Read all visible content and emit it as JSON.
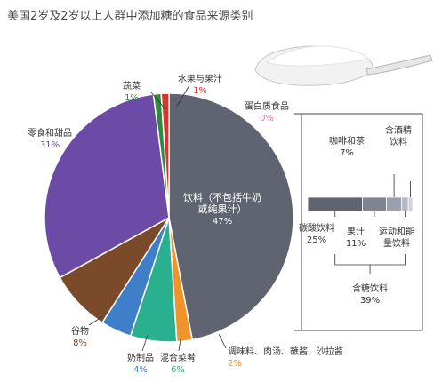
{
  "chart_data": {
    "type": "pie",
    "title": "美国2岁及2岁以上人群中添加糖的食品来源类别",
    "slices": [
      {
        "name": "饮料（不包括牛奶或纯果汁）",
        "label_lines": [
          "饮料（不包括牛奶",
          "或纯果汁）"
        ],
        "value": 47,
        "pct_label": "47%",
        "color": "#5f6470",
        "pct_color": "#ffffff"
      },
      {
        "name": "调味料、肉汤、蘸酱、沙拉酱",
        "label_lines": [
          "调味料、肉汤、蘸酱、沙拉酱"
        ],
        "value": 2,
        "pct_label": "2%",
        "color": "#f0932b",
        "pct_color": "#f0932b"
      },
      {
        "name": "混合菜肴",
        "label_lines": [
          "混合菜肴"
        ],
        "value": 6,
        "pct_label": "6%",
        "color": "#2bb08f",
        "pct_color": "#2bb08f"
      },
      {
        "name": "奶制品",
        "label_lines": [
          "奶制品"
        ],
        "value": 4,
        "pct_label": "4%",
        "color": "#3f7ec8",
        "pct_color": "#3f7ec8"
      },
      {
        "name": "谷物",
        "label_lines": [
          "谷物"
        ],
        "value": 8,
        "pct_label": "8%",
        "color": "#7a4a2a",
        "pct_color": "#7a4a2a"
      },
      {
        "name": "零食和甜品",
        "label_lines": [
          "零食和甜品"
        ],
        "value": 31,
        "pct_label": "31%",
        "color": "#6b4ba6",
        "pct_color": "#6b4ba6"
      },
      {
        "name": "蔬菜",
        "label_lines": [
          "蔬菜"
        ],
        "value": 1,
        "pct_label": "1%",
        "color": "#2e8b3e",
        "pct_color": "#2e8b3e"
      },
      {
        "name": "水果与果汁",
        "label_lines": [
          "水果与果汁"
        ],
        "value": 1,
        "pct_label": "1%",
        "color": "#d9342b",
        "pct_color": "#d9342b"
      },
      {
        "name": "蛋白质食品",
        "label_lines": [
          "蛋白质食品"
        ],
        "value": 0,
        "pct_label": "0%",
        "color": "#e07ab0",
        "pct_color": "#e07ab0"
      }
    ],
    "breakdown": {
      "total_label": "含糖饮料",
      "total_pct": "39%",
      "segments": [
        {
          "name": "碳酸饮料",
          "pct_label": "25%",
          "value": 25,
          "color": "#5f6470"
        },
        {
          "name": "果汁",
          "pct_label": "11%",
          "value": 11,
          "color": "#7f8490"
        },
        {
          "name": "咖啡和茶",
          "pct_label": "7%",
          "value": 7,
          "color": "#9a9fa9"
        },
        {
          "name": "运动和能量饮料",
          "pct_label": "",
          "value": 3,
          "color": "#b4b8c0"
        },
        {
          "name": "含酒精饮料",
          "pct_label": "",
          "value": 2,
          "color": "#cfd2d8"
        }
      ],
      "label_lines": {
        "碳酸饮料": [
          "碳酸饮料",
          "25%"
        ],
        "果汁": [
          "果汁",
          "11%"
        ],
        "咖啡和茶": [
          "咖啡和茶",
          "7%"
        ],
        "运动和能量饮料": [
          "运动和能",
          "量饮料"
        ],
        "含酒精饮料": [
          "含酒精",
          "饮料"
        ],
        "含糖饮料": [
          "含糖饮料",
          "39%"
        ]
      }
    }
  },
  "colors": {
    "title": "#4a4a4a",
    "spoon": "#dddddd",
    "box_border": "#444444"
  },
  "illustration": {
    "spoon_icon": "sugar-spoon-icon"
  }
}
